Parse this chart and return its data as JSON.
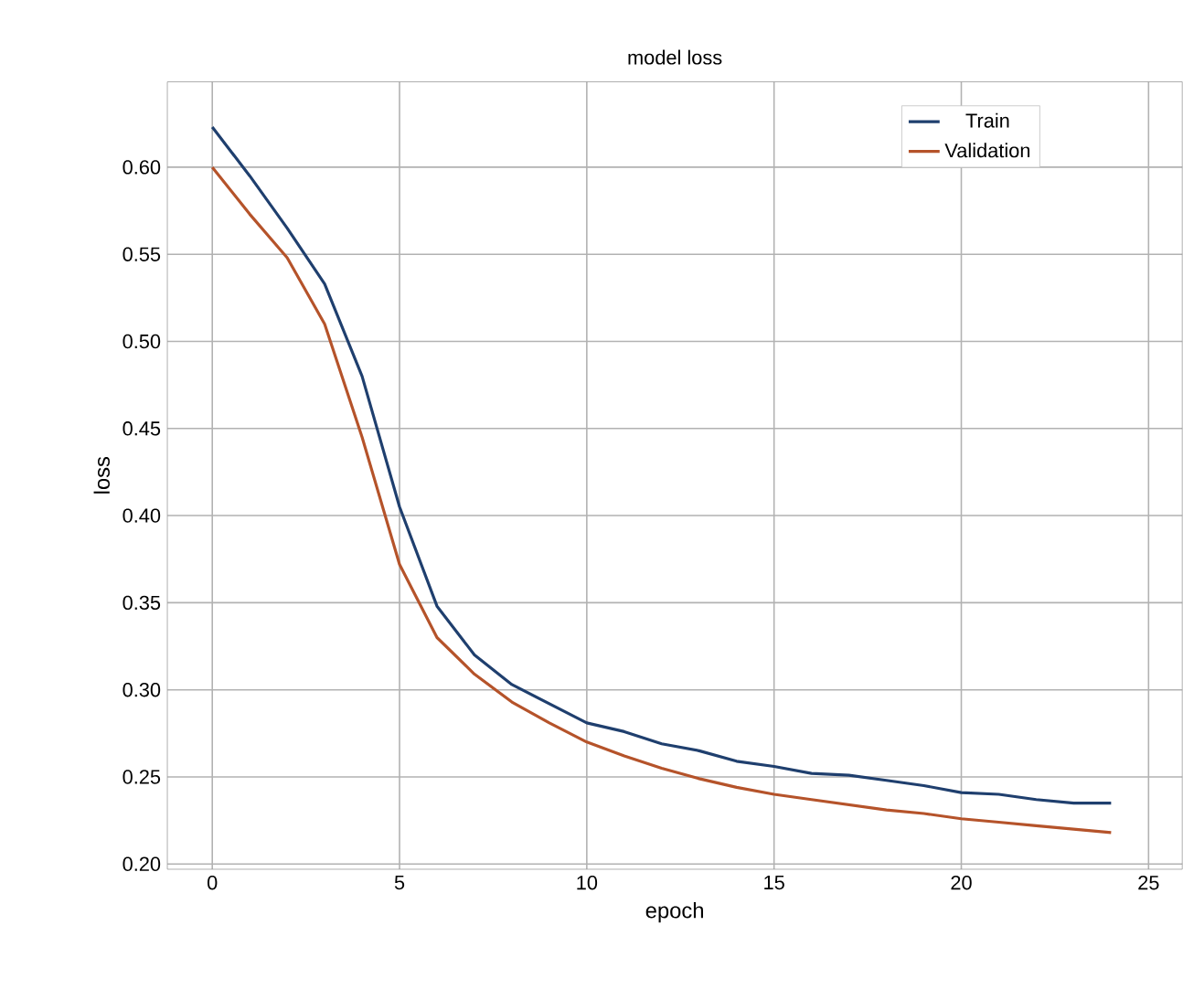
{
  "chart_data": {
    "type": "line",
    "title": "model loss",
    "xlabel": "epoch",
    "ylabel": "loss",
    "x": [
      0,
      1,
      2,
      3,
      4,
      5,
      6,
      7,
      8,
      9,
      10,
      11,
      12,
      13,
      14,
      15,
      16,
      17,
      18,
      19,
      20,
      21,
      22,
      23,
      24
    ],
    "series": [
      {
        "name": "Train",
        "color": "#1f3f6e",
        "values": [
          0.623,
          0.595,
          0.565,
          0.533,
          0.48,
          0.405,
          0.348,
          0.32,
          0.303,
          0.292,
          0.281,
          0.276,
          0.269,
          0.265,
          0.259,
          0.256,
          0.252,
          0.251,
          0.248,
          0.245,
          0.241,
          0.24,
          0.237,
          0.235,
          0.235
        ]
      },
      {
        "name": "Validation",
        "color": "#b5532a",
        "values": [
          0.6,
          0.573,
          0.548,
          0.51,
          0.445,
          0.372,
          0.33,
          0.309,
          0.293,
          0.281,
          0.27,
          0.262,
          0.255,
          0.249,
          0.244,
          0.24,
          0.237,
          0.234,
          0.231,
          0.229,
          0.226,
          0.224,
          0.222,
          0.22,
          0.218
        ]
      }
    ],
    "xlim": [
      -1.2,
      25.9
    ],
    "ylim": [
      0.197,
      0.649
    ],
    "xticks": [
      0,
      5,
      10,
      15,
      20,
      25
    ],
    "yticks": [
      {
        "value": 0.2,
        "label": "0.20"
      },
      {
        "value": 0.25,
        "label": "0.25"
      },
      {
        "value": 0.3,
        "label": "0.30"
      },
      {
        "value": 0.35,
        "label": "0.35"
      },
      {
        "value": 0.4,
        "label": "0.40"
      },
      {
        "value": 0.45,
        "label": "0.45"
      },
      {
        "value": 0.5,
        "label": "0.50"
      },
      {
        "value": 0.55,
        "label": "0.55"
      },
      {
        "value": 0.6,
        "label": "0.60"
      }
    ],
    "grid": true,
    "legend": "top right"
  }
}
